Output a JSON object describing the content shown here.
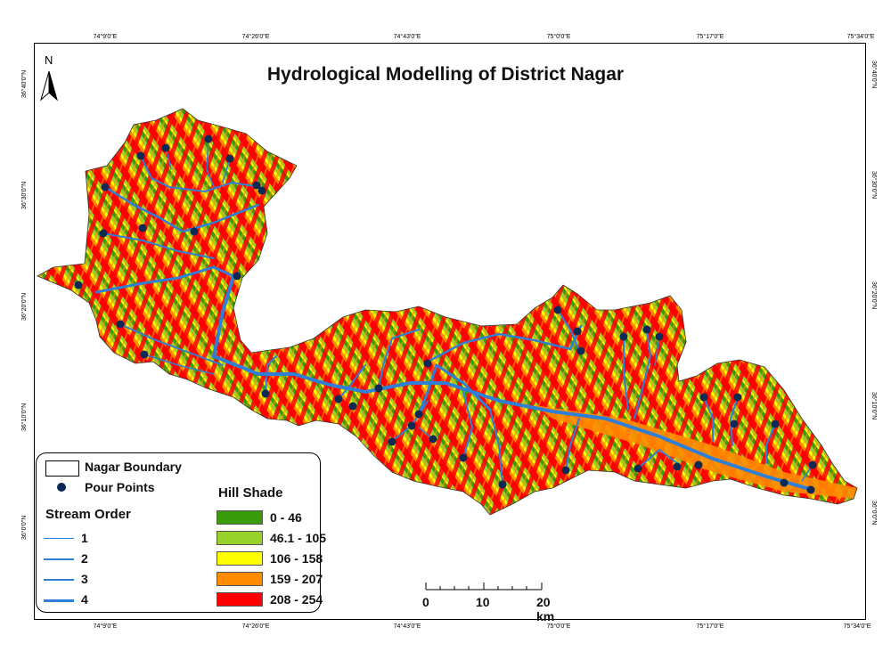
{
  "title": "Hydrological Modelling of District Nagar",
  "north_label": "N",
  "longitude_ticks": [
    "74°9'0\"E",
    "74°26'0\"E",
    "74°43'0\"E",
    "75°0'0\"E",
    "75°17'0\"E",
    "75°34'0\"E"
  ],
  "latitude_ticks": [
    "36°40'0\"N",
    "36°30'0\"N",
    "36°20'0\"N",
    "36°10'0\"N",
    "36°0'0\"N"
  ],
  "legend": {
    "boundary_label": "Nagar Boundary",
    "pour_points_label": "Pour Points",
    "stream_order_heading": "Stream Order",
    "stream_orders": [
      "1",
      "2",
      "3",
      "4"
    ],
    "hill_shade_heading": "Hill Shade",
    "hill_shade_classes": [
      {
        "label": "0 - 46",
        "color": "#3a9c0a"
      },
      {
        "label": "46.1 - 105",
        "color": "#98d12a"
      },
      {
        "label": "106 - 158",
        "color": "#ffff00"
      },
      {
        "label": "159 - 207",
        "color": "#ff8c00"
      },
      {
        "label": "208 - 254",
        "color": "#ff0000"
      }
    ]
  },
  "scale_bar": {
    "labels": [
      "0",
      "10",
      "20 km"
    ]
  },
  "colors": {
    "stream": "#2f7fd6",
    "pour_point": "#0d2a55",
    "terrain_red": "#ff0000",
    "terrain_green": "#98d12a",
    "terrain_yellow": "#ffff00",
    "terrain_orange": "#ff8c00",
    "terrain_dark_green": "#3a9c0a"
  }
}
